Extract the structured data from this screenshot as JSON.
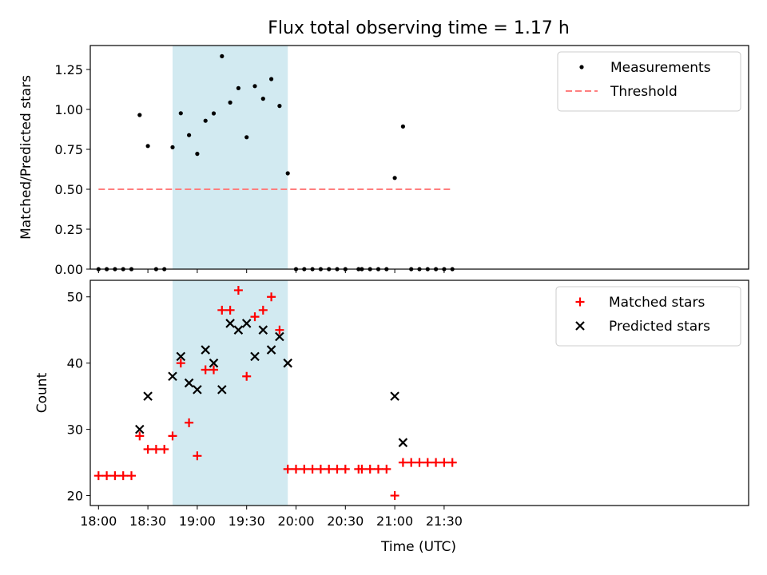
{
  "chart_data": {
    "title": "Flux total observing time = 1.17 h",
    "xlabel": "Time (UTC)",
    "x_ticks": [
      "18:00",
      "18:30",
      "19:00",
      "19:30",
      "20:00",
      "20:30",
      "21:00",
      "21:30"
    ],
    "x_range_min": [
      -5,
      395
    ],
    "observing_window_min": [
      45,
      115
    ],
    "observing_window_color": "#add8e6",
    "panels": [
      {
        "type": "scatter",
        "ylabel": "Matched/Predicted stars",
        "ylim": [
          0,
          1.4
        ],
        "y_ticks": [
          "0.00",
          "0.25",
          "0.50",
          "0.75",
          "1.00",
          "1.25"
        ],
        "legend_position": "upper-right",
        "threshold": {
          "name": "Threshold",
          "value": 0.5,
          "x_range_min": [
            0,
            215
          ],
          "color": "#ff7f7f"
        },
        "series": [
          {
            "name": "Measurements",
            "color": "#000000",
            "marker": "dot",
            "x_min": [
              0,
              5,
              10,
              15,
              20,
              25,
              30,
              35,
              40,
              45,
              50,
              55,
              60,
              65,
              70,
              75,
              80,
              85,
              90,
              95,
              100,
              105,
              110,
              115,
              120,
              125,
              130,
              135,
              140,
              145,
              150,
              158,
              160,
              165,
              170,
              175,
              180,
              185,
              190,
              195,
              200,
              205,
              210,
              215
            ],
            "y": [
              0,
              0,
              0,
              0,
              0,
              0.965,
              0.771,
              0,
              0,
              0.763,
              0.976,
              0.839,
              0.722,
              0.929,
              0.975,
              1.333,
              1.043,
              1.133,
              0.826,
              1.146,
              1.067,
              1.19,
              1.022,
              0.6,
              0,
              0,
              0,
              0,
              0,
              0,
              0,
              0,
              0,
              0,
              0,
              0,
              0.571,
              0.893,
              0,
              0,
              0,
              0,
              0,
              0
            ]
          }
        ]
      },
      {
        "type": "scatter",
        "ylabel": "Count",
        "ylim": [
          18.5,
          52.5
        ],
        "y_ticks": [
          "20",
          "30",
          "40",
          "50"
        ],
        "legend_position": "upper-right",
        "series": [
          {
            "name": "Matched stars",
            "color": "#ff0000",
            "marker": "plus",
            "x_min": [
              0,
              5,
              10,
              15,
              20,
              25,
              30,
              35,
              40,
              45,
              50,
              55,
              60,
              65,
              70,
              75,
              80,
              85,
              90,
              95,
              100,
              105,
              110,
              115,
              120,
              125,
              130,
              135,
              140,
              145,
              150,
              158,
              160,
              165,
              170,
              175,
              180,
              185,
              190,
              195,
              200,
              205,
              210,
              215
            ],
            "y": [
              23,
              23,
              23,
              23,
              23,
              29,
              27,
              27,
              27,
              29,
              40,
              31,
              26,
              39,
              39,
              48,
              48,
              51,
              38,
              47,
              48,
              50,
              45,
              24,
              24,
              24,
              24,
              24,
              24,
              24,
              24,
              24,
              24,
              24,
              24,
              24,
              20,
              25,
              25,
              25,
              25,
              25,
              25,
              25
            ]
          },
          {
            "name": "Predicted stars",
            "color": "#000000",
            "marker": "x",
            "x_min": [
              25,
              30,
              45,
              50,
              55,
              60,
              65,
              70,
              75,
              80,
              85,
              90,
              95,
              100,
              105,
              110,
              115,
              180,
              185
            ],
            "y": [
              30,
              35,
              38,
              41,
              37,
              36,
              42,
              40,
              36,
              46,
              45,
              46,
              41,
              45,
              42,
              44,
              40,
              35,
              28
            ]
          }
        ]
      }
    ]
  }
}
